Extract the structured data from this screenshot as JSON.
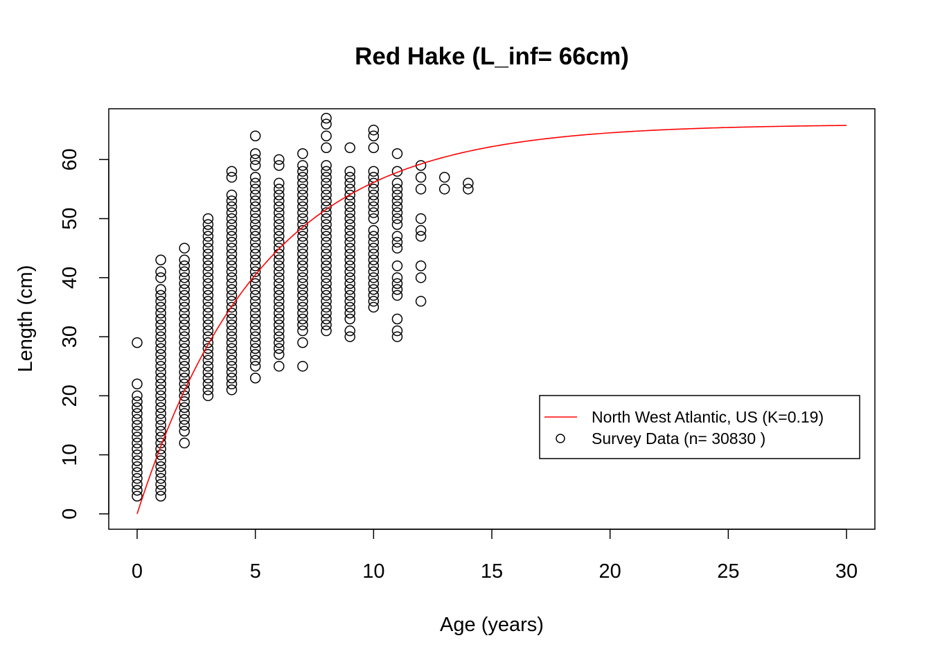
{
  "chart_data": {
    "type": "scatter",
    "title": "Red Hake (L_inf= 66cm)",
    "xlabel": "Age (years)",
    "ylabel": "Length (cm)",
    "xlim": [
      -1.2,
      31.2
    ],
    "ylim": [
      -2.6,
      68.6
    ],
    "x_ticks": [
      0,
      5,
      10,
      15,
      20,
      25,
      30
    ],
    "y_ticks": [
      0,
      10,
      20,
      30,
      40,
      50,
      60
    ],
    "grid": false,
    "legend_position": "bottom-right",
    "colors": {
      "curve": "#ff0000",
      "points": "#000000"
    },
    "curve": {
      "name": "North West Atlantic, US (K=0.19)",
      "L_inf": 66,
      "K": 0.19,
      "t0": 0,
      "x_range": [
        0,
        30
      ]
    },
    "scatter": {
      "name": "Survey Data (n= 30830 )",
      "groups": [
        {
          "age": 0,
          "lengths": [
            3,
            4,
            5,
            6,
            7,
            8,
            9,
            10,
            11,
            12,
            13,
            14,
            15,
            16,
            17,
            18,
            19,
            20,
            22,
            29
          ]
        },
        {
          "age": 1,
          "lengths": [
            3,
            4,
            5,
            6,
            7,
            8,
            9,
            10,
            11,
            12,
            13,
            14,
            15,
            16,
            17,
            18,
            19,
            20,
            21,
            22,
            23,
            24,
            25,
            26,
            27,
            28,
            29,
            30,
            31,
            32,
            33,
            34,
            35,
            36,
            37,
            38,
            40,
            41,
            43
          ]
        },
        {
          "age": 2,
          "lengths": [
            12,
            14,
            15,
            16,
            17,
            18,
            19,
            20,
            21,
            22,
            23,
            24,
            25,
            26,
            27,
            28,
            29,
            30,
            31,
            32,
            33,
            34,
            35,
            36,
            37,
            38,
            39,
            40,
            41,
            42,
            43,
            45
          ]
        },
        {
          "age": 3,
          "lengths": [
            20,
            21,
            22,
            23,
            24,
            25,
            26,
            27,
            28,
            29,
            30,
            31,
            32,
            33,
            34,
            35,
            36,
            37,
            38,
            39,
            40,
            41,
            42,
            43,
            44,
            45,
            46,
            47,
            48,
            49,
            50
          ]
        },
        {
          "age": 4,
          "lengths": [
            21,
            22,
            23,
            24,
            25,
            26,
            27,
            28,
            29,
            30,
            31,
            32,
            33,
            34,
            35,
            36,
            37,
            38,
            39,
            40,
            41,
            42,
            43,
            44,
            45,
            46,
            47,
            48,
            49,
            50,
            51,
            52,
            53,
            54,
            57,
            58
          ]
        },
        {
          "age": 5,
          "lengths": [
            23,
            25,
            26,
            27,
            28,
            29,
            30,
            31,
            32,
            33,
            34,
            35,
            36,
            37,
            38,
            39,
            40,
            41,
            42,
            43,
            44,
            45,
            46,
            47,
            48,
            49,
            50,
            51,
            52,
            53,
            54,
            55,
            56,
            57,
            59,
            60,
            61,
            64
          ]
        },
        {
          "age": 6,
          "lengths": [
            25,
            27,
            28,
            29,
            30,
            31,
            32,
            33,
            34,
            35,
            36,
            37,
            38,
            39,
            40,
            41,
            42,
            43,
            44,
            45,
            46,
            47,
            48,
            49,
            50,
            51,
            52,
            53,
            54,
            55,
            56,
            59,
            60
          ]
        },
        {
          "age": 7,
          "lengths": [
            25,
            29,
            31,
            32,
            33,
            34,
            35,
            36,
            37,
            38,
            39,
            40,
            41,
            42,
            43,
            44,
            45,
            46,
            47,
            48,
            49,
            50,
            51,
            52,
            53,
            54,
            55,
            56,
            57,
            58,
            59,
            61
          ]
        },
        {
          "age": 8,
          "lengths": [
            31,
            32,
            33,
            34,
            35,
            36,
            37,
            38,
            39,
            40,
            41,
            42,
            43,
            44,
            45,
            46,
            47,
            48,
            49,
            50,
            51,
            52,
            53,
            54,
            55,
            56,
            57,
            58,
            59,
            62,
            64,
            66,
            67
          ]
        },
        {
          "age": 9,
          "lengths": [
            30,
            31,
            33,
            34,
            35,
            36,
            37,
            38,
            39,
            40,
            41,
            42,
            43,
            44,
            45,
            46,
            47,
            48,
            49,
            50,
            51,
            52,
            53,
            54,
            55,
            56,
            57,
            58,
            62
          ]
        },
        {
          "age": 10,
          "lengths": [
            35,
            36,
            37,
            38,
            39,
            40,
            41,
            42,
            43,
            44,
            45,
            46,
            47,
            48,
            50,
            51,
            52,
            53,
            54,
            55,
            56,
            57,
            58,
            62,
            64,
            65
          ]
        },
        {
          "age": 11,
          "lengths": [
            30,
            31,
            33,
            37,
            38,
            39,
            40,
            42,
            45,
            46,
            47,
            49,
            50,
            51,
            52,
            53,
            54,
            55,
            56,
            58,
            61
          ]
        },
        {
          "age": 12,
          "lengths": [
            36,
            40,
            42,
            47,
            48,
            50,
            55,
            57,
            59
          ]
        },
        {
          "age": 13,
          "lengths": [
            55,
            57
          ]
        },
        {
          "age": 14,
          "lengths": [
            55,
            56
          ]
        }
      ]
    }
  }
}
